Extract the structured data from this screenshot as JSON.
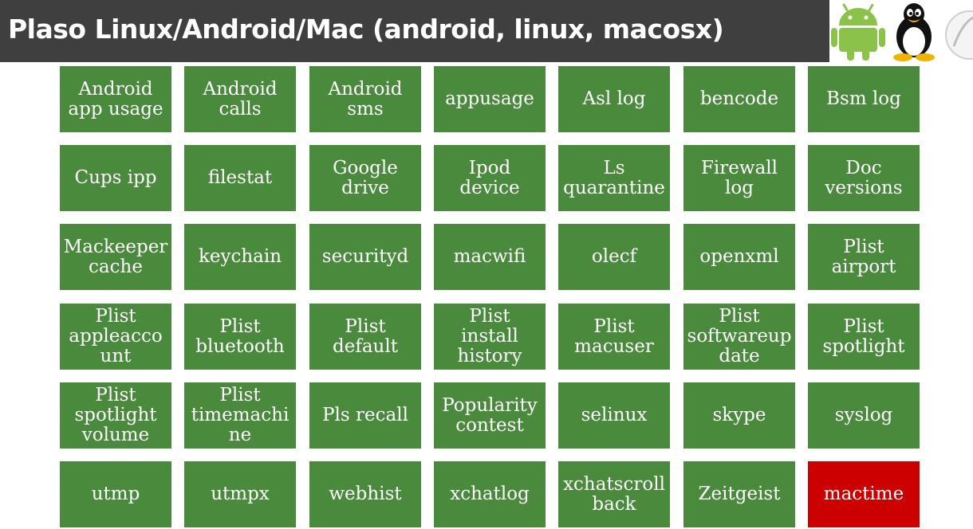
{
  "title": "Plaso Linux/Android/Mac (android, linux, macosx)",
  "icons": [
    "android-icon",
    "linux-tux-icon",
    "mac-icon"
  ],
  "colors": {
    "tile": "#4a8a3c",
    "highlight": "#cc0000",
    "header": "#3f3f3f"
  },
  "tiles": [
    [
      "Android\napp usage",
      "Android\ncalls",
      "Android\nsms",
      "appusage",
      "Asl log",
      "bencode",
      "Bsm log"
    ],
    [
      "Cups ipp",
      "filestat",
      "Google\ndrive",
      "Ipod\ndevice",
      "Ls\nquarantine",
      "Firewall\nlog",
      "Doc\nversions"
    ],
    [
      "Mackeeper\ncache",
      "keychain",
      "securityd",
      "macwifi",
      "olecf",
      "openxml",
      "Plist\nairport"
    ],
    [
      "Plist\nappleacco\nunt",
      "Plist\nbluetooth",
      "Plist\ndefault",
      "Plist\ninstall\nhistory",
      "Plist\nmacuser",
      "Plist\nsoftwareup\ndate",
      "Plist\nspotlight"
    ],
    [
      "Plist\nspotlight\nvolume",
      "Plist\ntimemachi\nne",
      "Pls recall",
      "Popularity\ncontest",
      "selinux",
      "skype",
      "syslog"
    ],
    [
      "utmp",
      "utmpx",
      "webhist",
      "xchatlog",
      "xchatscroll\nback",
      "Zeitgeist",
      "mactime"
    ]
  ],
  "highlighted": "mactime"
}
